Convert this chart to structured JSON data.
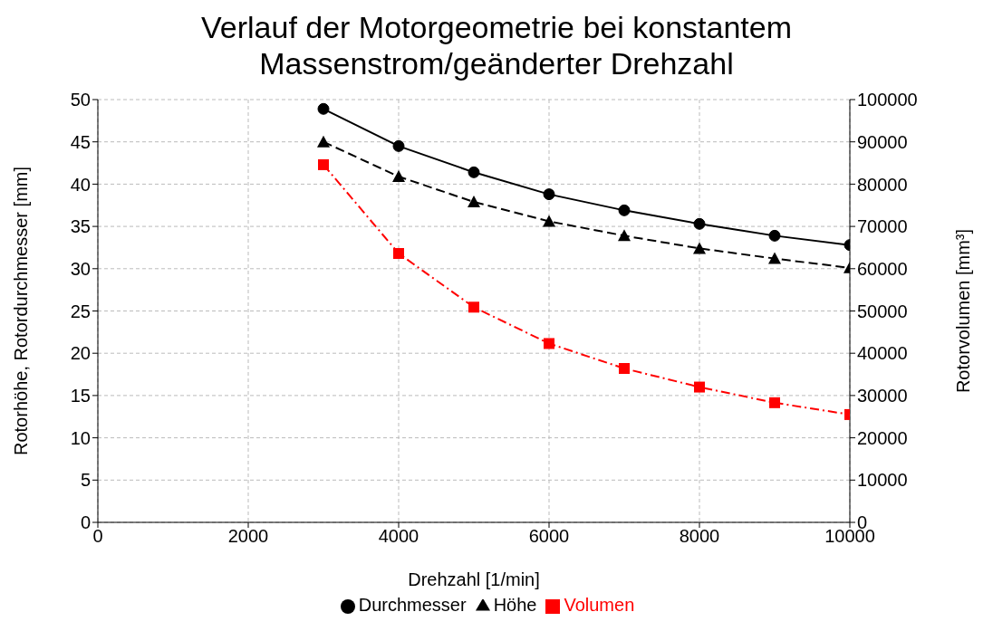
{
  "chart_data": {
    "type": "line",
    "title": "Verlauf der Motorgeometrie bei konstantem Massenstrom/geänderter Drehzahl",
    "xlabel": "Drehzahl [1/min]",
    "ylabel": "Rotorhöhe, Rotordurchmesser [mm]",
    "y2label": "Rotorvolumen [mm³]",
    "x": [
      3000,
      4000,
      5000,
      6000,
      7000,
      8000,
      9000,
      10000
    ],
    "series": [
      {
        "name": "Durchmesser",
        "color": "#000000",
        "marker": "circle",
        "line_style": "solid",
        "values": [
          48.9,
          44.5,
          41.4,
          38.8,
          36.9,
          35.3,
          33.9,
          32.8
        ]
      },
      {
        "name": "Höhe",
        "color": "#000000",
        "marker": "triangle",
        "line_style": "dashed",
        "values": [
          45.0,
          40.9,
          37.9,
          35.6,
          33.9,
          32.4,
          31.2,
          30.1
        ]
      },
      {
        "name": "Volumen",
        "color": "#ff0000",
        "marker": "square",
        "line_style": "dashdot",
        "axis": "y2",
        "values": [
          84600,
          63600,
          50900,
          42300,
          36400,
          32000,
          28300,
          25500
        ]
      }
    ],
    "xlim": [
      0,
      10000
    ],
    "xticks": [
      0,
      2000,
      4000,
      6000,
      8000,
      10000
    ],
    "ylim": [
      0,
      50
    ],
    "yticks": [
      0,
      5,
      10,
      15,
      20,
      25,
      30,
      35,
      40,
      45,
      50
    ],
    "y2lim": [
      0,
      100000
    ],
    "y2ticks": [
      0,
      10000,
      20000,
      30000,
      40000,
      50000,
      60000,
      70000,
      80000,
      90000,
      100000
    ],
    "grid": true,
    "legend": "bottom"
  }
}
